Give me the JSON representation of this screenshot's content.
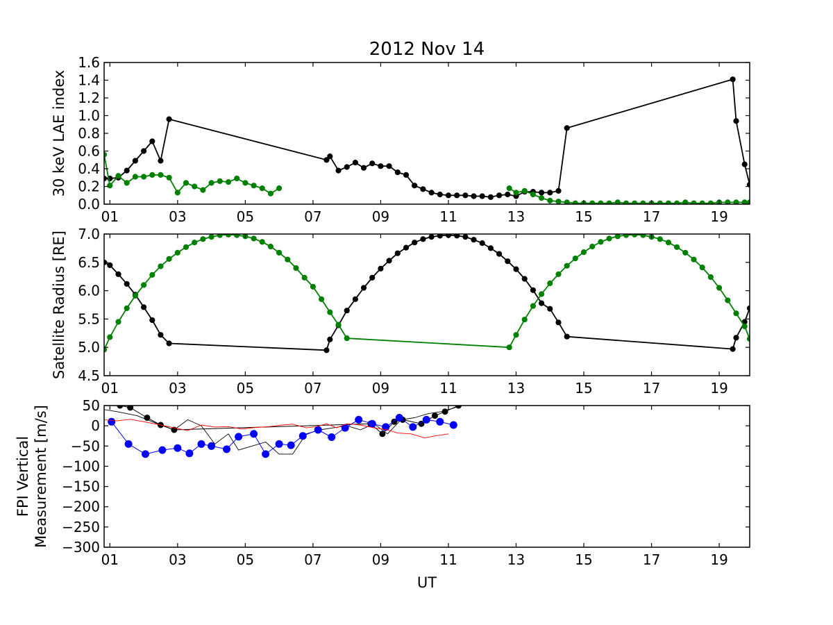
{
  "title": "2012 Nov 14",
  "xlabel": "UT",
  "x_ticks": [
    "01",
    "03",
    "05",
    "07",
    "09",
    "11",
    "13",
    "15",
    "17",
    "19"
  ],
  "colors": {
    "black": "#000000",
    "green": "#008000",
    "blue": "#0000ff",
    "red": "#ff0000"
  },
  "chart_data": [
    {
      "type": "line",
      "ylabel": "30 keV LAE index",
      "xlim": [
        0.83,
        19.9
      ],
      "ylim": [
        0.0,
        1.6
      ],
      "yticks": [
        0.0,
        0.2,
        0.4,
        0.6,
        0.8,
        1.0,
        1.2,
        1.4,
        1.6
      ],
      "ytick_labels": [
        "0.0",
        "0.2",
        "0.4",
        "0.6",
        "0.8",
        "1.0",
        "1.2",
        "1.4",
        "1.6"
      ],
      "series": [
        {
          "color": "#000000",
          "markers": true,
          "x": [
            0.83,
            1.0,
            1.25,
            1.5,
            1.75,
            2.0,
            2.25,
            2.5,
            2.75,
            7.4,
            7.5,
            7.75,
            8.0,
            8.25,
            8.5,
            8.75,
            9.0,
            9.25,
            9.5,
            9.75,
            10.0,
            10.25,
            10.5,
            10.75,
            11.0,
            11.25,
            11.5,
            11.75,
            12.0,
            12.25,
            12.5,
            12.75,
            13.0,
            13.25,
            13.5,
            13.75,
            14.0,
            14.25,
            14.5,
            19.4,
            19.5,
            19.75,
            19.9
          ],
          "y": [
            0.29,
            0.29,
            0.3,
            0.38,
            0.49,
            0.6,
            0.71,
            0.49,
            0.96,
            0.5,
            0.54,
            0.38,
            0.42,
            0.47,
            0.41,
            0.46,
            0.43,
            0.43,
            0.36,
            0.33,
            0.21,
            0.17,
            0.13,
            0.11,
            0.1,
            0.1,
            0.1,
            0.09,
            0.09,
            0.08,
            0.1,
            0.11,
            0.09,
            0.14,
            0.14,
            0.13,
            0.13,
            0.15,
            0.86,
            1.41,
            0.94,
            0.45,
            0.22
          ]
        },
        {
          "color": "#008000",
          "markers": true,
          "x": [
            0.83,
            1.0,
            1.25,
            1.5,
            1.75,
            2.0,
            2.25,
            2.5,
            2.75,
            3.0,
            3.25,
            3.5,
            3.75,
            4.0,
            4.25,
            4.5,
            4.75,
            5.0,
            5.25,
            5.5,
            5.75,
            6.0
          ],
          "y": [
            0.56,
            0.21,
            0.32,
            0.24,
            0.31,
            0.31,
            0.33,
            0.33,
            0.3,
            0.13,
            0.24,
            0.2,
            0.16,
            0.24,
            0.26,
            0.25,
            0.29,
            0.24,
            0.21,
            0.18,
            0.12,
            0.18
          ]
        },
        {
          "color": "#008000",
          "markers": true,
          "x": [
            12.8,
            13.0,
            13.25,
            13.5,
            13.75,
            14.0,
            14.25,
            14.5,
            14.75,
            15.0,
            15.25,
            15.5,
            15.75,
            16.0,
            16.25,
            16.5,
            16.75,
            17.0,
            17.25,
            17.5,
            17.75,
            18.0,
            18.25,
            18.5,
            18.75,
            19.0,
            19.25,
            19.5,
            19.75,
            19.9
          ],
          "y": [
            0.18,
            0.13,
            0.15,
            0.11,
            0.07,
            0.04,
            0.03,
            0.02,
            0.01,
            0.01,
            0.01,
            0.01,
            0.01,
            0.02,
            0.01,
            0.01,
            0.01,
            0.01,
            0.01,
            0.01,
            0.01,
            0.02,
            0.01,
            0.01,
            0.01,
            0.02,
            0.02,
            0.02,
            0.02,
            0.02
          ]
        }
      ]
    },
    {
      "type": "line",
      "ylabel": "Satellite Radius [RE]",
      "xlim": [
        0.83,
        19.9
      ],
      "ylim": [
        4.5,
        7.0
      ],
      "yticks": [
        4.5,
        5.0,
        5.5,
        6.0,
        6.5,
        7.0
      ],
      "ytick_labels": [
        "4.5",
        "5.0",
        "5.5",
        "6.0",
        "6.5",
        "7.0"
      ],
      "series": [
        {
          "color": "#000000",
          "markers": true,
          "x": [
            0.83,
            1.0,
            1.25,
            1.5,
            1.75,
            2.0,
            2.25,
            2.5,
            2.75,
            7.4,
            7.5,
            7.75,
            8.0,
            8.25,
            8.5,
            8.75,
            9.0,
            9.25,
            9.5,
            9.75,
            10.0,
            10.25,
            10.5,
            10.75,
            11.0,
            11.25,
            11.5,
            11.75,
            12.0,
            12.25,
            12.5,
            12.75,
            13.0,
            13.25,
            13.5,
            13.75,
            14.0,
            14.25,
            14.5,
            19.4,
            19.5,
            19.75,
            19.9
          ],
          "y": [
            6.5,
            6.45,
            6.29,
            6.12,
            5.93,
            5.71,
            5.48,
            5.22,
            5.07,
            4.95,
            5.14,
            5.39,
            5.65,
            5.85,
            6.05,
            6.23,
            6.39,
            6.53,
            6.66,
            6.76,
            6.85,
            6.91,
            6.95,
            6.97,
            6.98,
            6.97,
            6.95,
            6.9,
            6.84,
            6.75,
            6.65,
            6.52,
            6.38,
            6.21,
            6.01,
            5.78,
            5.68,
            5.44,
            5.19,
            4.97,
            5.17,
            5.45,
            5.69
          ]
        },
        {
          "color": "#008000",
          "markers": true,
          "x": [
            0.83,
            1.0,
            1.25,
            1.5,
            1.75,
            2.0,
            2.25,
            2.5,
            2.75,
            3.0,
            3.25,
            3.5,
            3.75,
            4.0,
            4.25,
            4.5,
            4.75,
            5.0,
            5.25,
            5.5,
            5.75,
            6.0,
            6.25,
            6.5,
            6.75,
            7.0,
            7.25,
            7.5,
            7.75,
            8.0,
            12.8,
            13.0,
            13.25,
            13.5,
            13.75,
            14.0,
            14.25,
            14.5,
            14.75,
            15.0,
            15.25,
            15.5,
            15.75,
            16.0,
            16.25,
            16.5,
            16.75,
            17.0,
            17.25,
            17.5,
            17.75,
            18.0,
            18.25,
            18.5,
            18.75,
            19.0,
            19.25,
            19.5,
            19.75,
            19.9
          ],
          "y": [
            4.96,
            5.18,
            5.45,
            5.69,
            5.91,
            6.1,
            6.28,
            6.43,
            6.56,
            6.67,
            6.77,
            6.85,
            6.91,
            6.95,
            6.98,
            6.99,
            6.98,
            6.96,
            6.92,
            6.86,
            6.78,
            6.67,
            6.55,
            6.4,
            6.23,
            6.07,
            5.85,
            5.62,
            5.4,
            5.16,
            5.0,
            5.22,
            5.49,
            5.73,
            5.94,
            6.13,
            6.29,
            6.44,
            6.57,
            6.68,
            6.78,
            6.86,
            6.92,
            6.96,
            6.98,
            6.99,
            6.98,
            6.95,
            6.91,
            6.85,
            6.77,
            6.67,
            6.55,
            6.41,
            6.24,
            6.05,
            5.83,
            5.6,
            5.37,
            5.15
          ]
        }
      ]
    },
    {
      "type": "line",
      "ylabel": "FPI Vertical Measurement [m/s]",
      "ylabel_lines": [
        "FPI Vertical",
        "Measurement [m/s]"
      ],
      "xlim": [
        0.83,
        19.9
      ],
      "ylim": [
        -300,
        50
      ],
      "yticks": [
        -300,
        -250,
        -200,
        -150,
        -100,
        -50,
        0,
        50
      ],
      "ytick_labels": [
        "−300",
        "−250",
        "−200",
        "−150",
        "−100",
        "−50",
        "0",
        "50"
      ],
      "series": [
        {
          "color": "#000000",
          "markers": true,
          "marker_size": 4,
          "line_width": 1,
          "x": [
            1.0,
            1.3,
            1.6,
            2.1,
            2.5,
            2.9,
            8.7,
            9.05,
            9.4,
            9.65,
            10.2,
            10.6,
            10.9,
            11.3
          ],
          "y": [
            58,
            50,
            45,
            20,
            2,
            -10,
            5,
            -20,
            10,
            15,
            5,
            25,
            35,
            50
          ]
        },
        {
          "color": "#000000",
          "markers": false,
          "line_width": 0.9,
          "x": [
            0.83,
            1.2,
            1.8,
            2.4,
            2.9,
            3.3,
            3.7,
            4.1,
            4.5,
            4.8,
            5.2,
            5.6,
            6.0,
            6.4,
            6.8,
            7.2,
            7.6,
            8.0,
            8.4,
            8.8,
            9.2,
            9.6,
            10.0,
            10.4,
            10.8,
            11.2,
            11.5
          ],
          "y": [
            40,
            35,
            25,
            5,
            -10,
            15,
            0,
            -45,
            -20,
            -60,
            -50,
            -40,
            -70,
            -70,
            -20,
            -10,
            -5,
            0,
            -10,
            5,
            -20,
            15,
            20,
            30,
            35,
            45,
            55
          ]
        },
        {
          "color": "#0000ff",
          "markers": true,
          "marker_size": 5,
          "line_width": 1,
          "x": [
            1.05,
            1.55,
            2.05,
            2.55,
            3.0,
            3.35,
            3.7,
            4.0,
            4.45,
            4.8,
            5.25,
            5.6,
            6.0,
            6.35,
            6.7,
            7.15,
            7.55,
            7.95,
            8.35,
            8.75,
            9.15,
            9.55,
            9.95,
            10.35,
            10.75,
            11.15
          ],
          "y": [
            10,
            -45,
            -70,
            -60,
            -55,
            -68,
            -45,
            -50,
            -58,
            -27,
            -20,
            -70,
            -45,
            -48,
            -25,
            -10,
            -28,
            -5,
            15,
            5,
            -3,
            20,
            -3,
            15,
            10,
            2
          ]
        },
        {
          "color": "#ff0000",
          "markers": false,
          "line_width": 0.9,
          "x": [
            0.83,
            1.2,
            1.6,
            2.0,
            2.5,
            2.9,
            3.3,
            3.7,
            4.1,
            4.5,
            4.9,
            5.3,
            5.7,
            6.1,
            6.4,
            6.8,
            7.1,
            7.4,
            7.7,
            8.0,
            8.4,
            8.8,
            9.2,
            9.5,
            9.9,
            10.3,
            10.6,
            11.0
          ],
          "y": [
            15,
            12,
            16,
            10,
            2,
            -5,
            -12,
            2,
            -3,
            -2,
            -8,
            -4,
            -2,
            2,
            4,
            -5,
            -2,
            5,
            -5,
            5,
            2,
            -5,
            -10,
            -18,
            -20,
            -30,
            -25,
            -20
          ]
        }
      ]
    }
  ]
}
